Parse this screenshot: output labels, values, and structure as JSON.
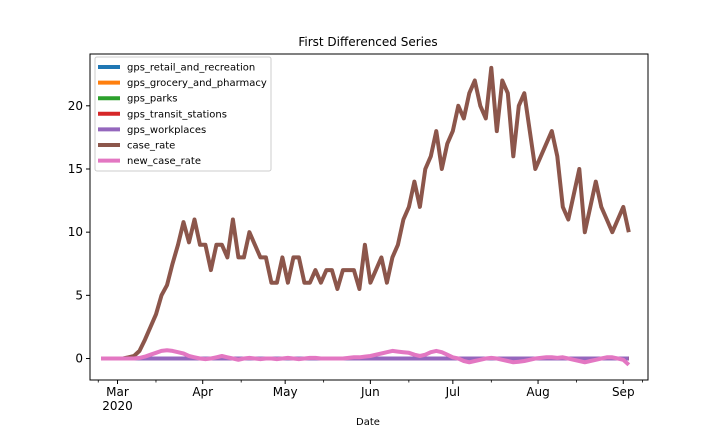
{
  "chart_data": {
    "type": "line",
    "title": "First Differenced Series",
    "xlabel": "Date",
    "ylabel": "",
    "x_ticks": [
      "Mar",
      "Apr",
      "May",
      "Jun",
      "Jul",
      "Aug",
      "Sep"
    ],
    "x_year_label": "2020",
    "ylim": [
      -1.7,
      24.1
    ],
    "y_ticks": [
      0,
      5,
      10,
      15,
      20
    ],
    "legend_position": "upper-left",
    "x": [
      "2020-02-24",
      "2020-03-01",
      "2020-03-03",
      "2020-03-05",
      "2020-03-07",
      "2020-03-09",
      "2020-03-11",
      "2020-03-13",
      "2020-03-15",
      "2020-03-17",
      "2020-03-19",
      "2020-03-21",
      "2020-03-23",
      "2020-03-25",
      "2020-03-27",
      "2020-03-29",
      "2020-03-31",
      "2020-04-02",
      "2020-04-04",
      "2020-04-06",
      "2020-04-08",
      "2020-04-10",
      "2020-04-12",
      "2020-04-14",
      "2020-04-16",
      "2020-04-18",
      "2020-04-20",
      "2020-04-22",
      "2020-04-24",
      "2020-04-26",
      "2020-04-28",
      "2020-04-30",
      "2020-05-02",
      "2020-05-04",
      "2020-05-06",
      "2020-05-08",
      "2020-05-10",
      "2020-05-12",
      "2020-05-14",
      "2020-05-16",
      "2020-05-18",
      "2020-05-20",
      "2020-05-22",
      "2020-05-24",
      "2020-05-26",
      "2020-05-28",
      "2020-05-30",
      "2020-06-01",
      "2020-06-03",
      "2020-06-05",
      "2020-06-07",
      "2020-06-09",
      "2020-06-11",
      "2020-06-13",
      "2020-06-15",
      "2020-06-17",
      "2020-06-19",
      "2020-06-21",
      "2020-06-23",
      "2020-06-25",
      "2020-06-27",
      "2020-06-29",
      "2020-07-01",
      "2020-07-03",
      "2020-07-05",
      "2020-07-07",
      "2020-07-09",
      "2020-07-11",
      "2020-07-13",
      "2020-07-15",
      "2020-07-17",
      "2020-07-19",
      "2020-07-21",
      "2020-07-23",
      "2020-07-25",
      "2020-07-27",
      "2020-07-29",
      "2020-07-31",
      "2020-08-02",
      "2020-08-04",
      "2020-08-06",
      "2020-08-08",
      "2020-08-10",
      "2020-08-12",
      "2020-08-14",
      "2020-08-16",
      "2020-08-18",
      "2020-08-20",
      "2020-08-22",
      "2020-08-24",
      "2020-08-26",
      "2020-08-28",
      "2020-08-30",
      "2020-09-01",
      "2020-09-03"
    ],
    "series": [
      {
        "name": "gps_retail_and_recreation",
        "color": "#1f77b4",
        "values": [
          0,
          0,
          0,
          0,
          0,
          0,
          0,
          0,
          0,
          0,
          0,
          0,
          0,
          0,
          0,
          0,
          0,
          0,
          0,
          0,
          0,
          0,
          0,
          0,
          0,
          0,
          0,
          0,
          0,
          0,
          0,
          0,
          0,
          0,
          0,
          0,
          0,
          0,
          0,
          0,
          0,
          0,
          0,
          0,
          0,
          0,
          0,
          0,
          0,
          0,
          0,
          0,
          0,
          0,
          0,
          0,
          0,
          0,
          0,
          0,
          0,
          0,
          0,
          0,
          0,
          0,
          0,
          0,
          0,
          0,
          0,
          0,
          0,
          0,
          0,
          0,
          0,
          0,
          0,
          0,
          0,
          0,
          0,
          0,
          0,
          0,
          0,
          0,
          0,
          0,
          0,
          0,
          0,
          0,
          0
        ]
      },
      {
        "name": "gps_grocery_and_pharmacy",
        "color": "#ff7f0e",
        "values": [
          0,
          0,
          0,
          0,
          0,
          0,
          0,
          0,
          0,
          0,
          0,
          0,
          0,
          0,
          0,
          0,
          0,
          0,
          0,
          0,
          0,
          0,
          0,
          0,
          0,
          0,
          0,
          0,
          0,
          0,
          0,
          0,
          0,
          0,
          0,
          0,
          0,
          0,
          0,
          0,
          0,
          0,
          0,
          0,
          0,
          0,
          0,
          0,
          0,
          0,
          0,
          0,
          0,
          0,
          0,
          0,
          0,
          0,
          0,
          0,
          0,
          0,
          0,
          0,
          0,
          0,
          0,
          0,
          0,
          0,
          0,
          0,
          0,
          0,
          0,
          0,
          0,
          0,
          0,
          0,
          0,
          0,
          0,
          0,
          0,
          0,
          0,
          0,
          0,
          0,
          0,
          0,
          0,
          0,
          0
        ]
      },
      {
        "name": "gps_parks",
        "color": "#2ca02c",
        "values": [
          0,
          0,
          0,
          0,
          0,
          0,
          0,
          0,
          0,
          0,
          0,
          0,
          0,
          0,
          0,
          0,
          0,
          0,
          0,
          0,
          0,
          0,
          0,
          0,
          0,
          0,
          0,
          0,
          0,
          0,
          0,
          0,
          0,
          0,
          0,
          0,
          0,
          0,
          0,
          0,
          0,
          0,
          0,
          0,
          0,
          0,
          0,
          0,
          0,
          0,
          0,
          0,
          0,
          0,
          0,
          0,
          0,
          0,
          0,
          0,
          0,
          0,
          0,
          0,
          0,
          0,
          0,
          0,
          0,
          0,
          0,
          0,
          0,
          0,
          0,
          0,
          0,
          0,
          0,
          0,
          0,
          0,
          0,
          0,
          0,
          0,
          0,
          0,
          0,
          0,
          0,
          0,
          0,
          0,
          0
        ]
      },
      {
        "name": "gps_transit_stations",
        "color": "#d62728",
        "values": [
          0,
          0,
          0,
          0,
          0,
          0,
          0,
          0,
          0,
          0,
          0,
          0,
          0,
          0,
          0,
          0,
          0,
          0,
          0,
          0,
          0,
          0,
          0,
          0,
          0,
          0,
          0,
          0,
          0,
          0,
          0,
          0,
          0,
          0,
          0,
          0,
          0,
          0,
          0,
          0,
          0,
          0,
          0,
          0,
          0,
          0,
          0,
          0,
          0,
          0,
          0,
          0,
          0,
          0,
          0,
          0,
          0,
          0,
          0,
          0,
          0,
          0,
          0,
          0,
          0,
          0,
          0,
          0,
          0,
          0,
          0,
          0,
          0,
          0,
          0,
          0,
          0,
          0,
          0,
          0,
          0,
          0,
          0,
          0,
          0,
          0,
          0,
          0,
          0,
          0,
          0,
          0,
          0,
          0,
          0
        ]
      },
      {
        "name": "gps_workplaces",
        "color": "#9467bd",
        "values": [
          0,
          0,
          0,
          0,
          0,
          0,
          0,
          0,
          0,
          0,
          0,
          0,
          0,
          0,
          0,
          0,
          0,
          0,
          0,
          0,
          0,
          0,
          0,
          0,
          0,
          0,
          0,
          0,
          0,
          0,
          0,
          0,
          0,
          0,
          0,
          0,
          0,
          0,
          0,
          0,
          0,
          0,
          0,
          0,
          0,
          0,
          0,
          0,
          0,
          0,
          0,
          0,
          0,
          0,
          0,
          0,
          0,
          0,
          0,
          0,
          0,
          0,
          0,
          0,
          0,
          0,
          0,
          0,
          0,
          0,
          0,
          0,
          0,
          0,
          0,
          0,
          0,
          0,
          0,
          0,
          0,
          0,
          0,
          0,
          0,
          0,
          0,
          0,
          0,
          0,
          0,
          0,
          0,
          0,
          0
        ]
      },
      {
        "name": "case_rate",
        "color": "#8c564b",
        "values": [
          0,
          0,
          0,
          0.1,
          0.2,
          0.6,
          1.5,
          2.5,
          3.5,
          5,
          5.8,
          7.5,
          9,
          10.8,
          9.2,
          11,
          9,
          9,
          7,
          9,
          9,
          8,
          11,
          8,
          8,
          10,
          9,
          8,
          8,
          6,
          6,
          8,
          6,
          8,
          8,
          6,
          6,
          7,
          6,
          7,
          7,
          5.5,
          7,
          7,
          7,
          5.5,
          9,
          6,
          7,
          8,
          6,
          8,
          9,
          11,
          12,
          14,
          12,
          15,
          16,
          18,
          15,
          17,
          18,
          20,
          19,
          21,
          22,
          20,
          19,
          23,
          18,
          22,
          21,
          16,
          20,
          21,
          18,
          15,
          16,
          17,
          18,
          16,
          12,
          11,
          13,
          15,
          10,
          12,
          14,
          12,
          11,
          10,
          11,
          12,
          10
        ]
      },
      {
        "name": "new_case_rate",
        "color": "#e377c2",
        "values": [
          0,
          0,
          0,
          0,
          0,
          0.05,
          0.15,
          0.3,
          0.45,
          0.6,
          0.65,
          0.6,
          0.5,
          0.4,
          0.2,
          0.1,
          0,
          -0.05,
          0,
          0.1,
          0.2,
          0.1,
          0,
          -0.1,
          0,
          0.05,
          0,
          -0.05,
          0,
          0,
          -0.05,
          0,
          0.05,
          0,
          -0.05,
          0,
          0.05,
          0.05,
          0,
          0,
          0,
          0,
          0,
          0.05,
          0.1,
          0.1,
          0.15,
          0.2,
          0.3,
          0.4,
          0.5,
          0.6,
          0.55,
          0.5,
          0.45,
          0.3,
          0.2,
          0.3,
          0.5,
          0.6,
          0.5,
          0.3,
          0.1,
          0,
          -0.2,
          -0.3,
          -0.2,
          -0.1,
          0,
          0.05,
          0,
          -0.1,
          -0.2,
          -0.3,
          -0.25,
          -0.2,
          -0.1,
          0,
          0.05,
          0.1,
          0.1,
          0.05,
          0.1,
          0,
          -0.1,
          -0.2,
          -0.3,
          -0.2,
          -0.1,
          0,
          0.1,
          0.1,
          0,
          -0.1,
          -0.5
        ]
      }
    ]
  }
}
